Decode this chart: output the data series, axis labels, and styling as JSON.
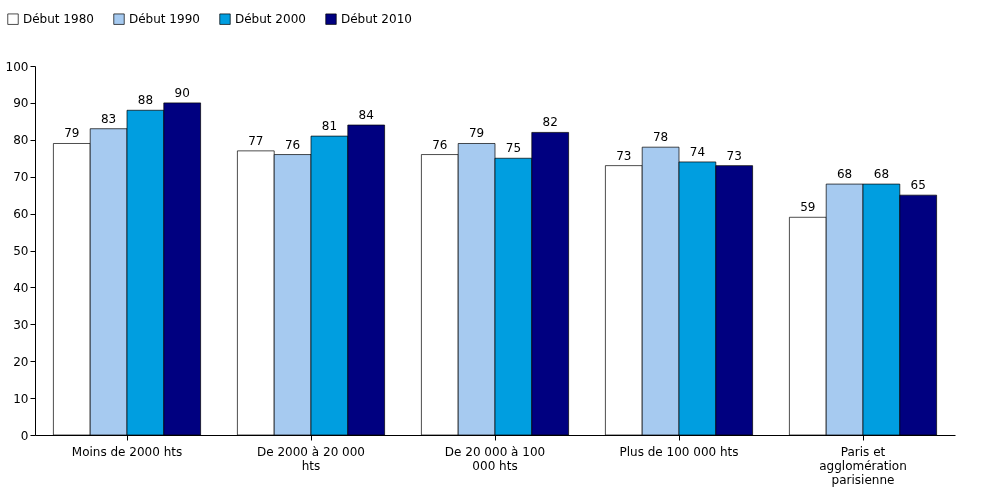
{
  "chart_data": {
    "type": "bar",
    "categories": [
      "Moins de 2000 hts",
      "De 2000 à  20 000 hts",
      "De 20 000 à  100 000 hts",
      "Plus de 100 000 hts",
      "Paris et agglomération parisienne"
    ],
    "series": [
      {
        "name": "Début 1980",
        "color": "#ffffff",
        "values": [
          79,
          77,
          76,
          73,
          59
        ]
      },
      {
        "name": "Début 1990",
        "color": "#a6caf0",
        "values": [
          83,
          76,
          79,
          78,
          68
        ]
      },
      {
        "name": "Début 2000",
        "color": "#009ee0",
        "values": [
          88,
          81,
          75,
          74,
          68
        ]
      },
      {
        "name": "Début 2010",
        "color": "#000080",
        "values": [
          90,
          84,
          82,
          73,
          65
        ]
      }
    ],
    "ylim": [
      0,
      100
    ],
    "yticks": [
      0,
      10,
      20,
      30,
      40,
      50,
      60,
      70,
      80,
      90,
      100
    ],
    "grid": false,
    "legend": "top left",
    "data_labels": true
  }
}
